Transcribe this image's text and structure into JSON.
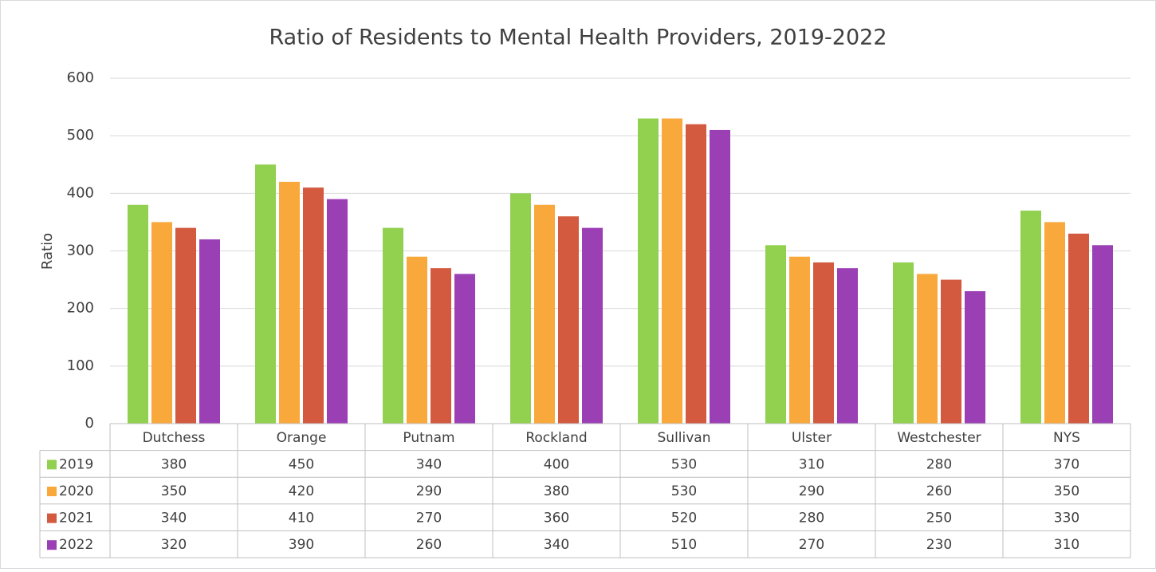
{
  "chart_data": {
    "type": "bar",
    "title": "Ratio of Residents to Mental Health Providers, 2019-2022",
    "y_label": "Ratio",
    "categories": [
      "Dutchess",
      "Orange",
      "Putnam",
      "Rockland",
      "Sullivan",
      "Ulster",
      "Westchester",
      "NYS"
    ],
    "series": [
      {
        "name": "2019",
        "color": "#92d050",
        "values": [
          380,
          450,
          340,
          400,
          530,
          310,
          280,
          370
        ]
      },
      {
        "name": "2020",
        "color": "#f9a83b",
        "values": [
          350,
          420,
          290,
          380,
          530,
          290,
          260,
          350
        ]
      },
      {
        "name": "2021",
        "color": "#d35a3e",
        "values": [
          340,
          410,
          270,
          360,
          520,
          280,
          250,
          330
        ]
      },
      {
        "name": "2022",
        "color": "#9b3fb5",
        "values": [
          320,
          390,
          260,
          340,
          510,
          270,
          230,
          310
        ]
      }
    ],
    "ylim": [
      0,
      600
    ],
    "yticks": [
      0,
      100,
      200,
      300,
      400,
      500,
      600
    ],
    "grid": true,
    "data_table": true
  }
}
